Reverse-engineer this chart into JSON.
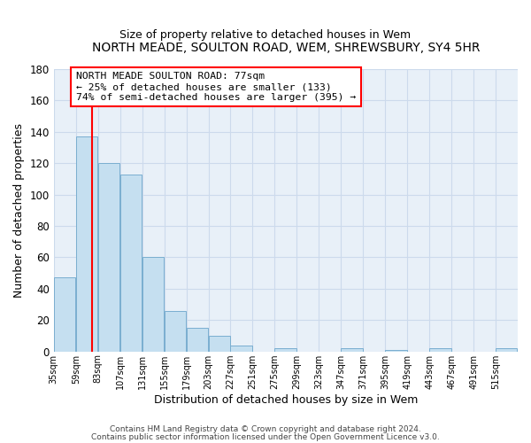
{
  "title": "NORTH MEADE, SOULTON ROAD, WEM, SHREWSBURY, SY4 5HR",
  "subtitle": "Size of property relative to detached houses in Wem",
  "xlabel": "Distribution of detached houses by size in Wem",
  "ylabel": "Number of detached properties",
  "bar_color": "#c5dff0",
  "bar_edge_color": "#7aaed0",
  "grid_color": "#ccdaec",
  "background_color": "#e8f0f8",
  "bin_labels": [
    "35sqm",
    "59sqm",
    "83sqm",
    "107sqm",
    "131sqm",
    "155sqm",
    "179sqm",
    "203sqm",
    "227sqm",
    "251sqm",
    "275sqm",
    "299sqm",
    "323sqm",
    "347sqm",
    "371sqm",
    "395sqm",
    "419sqm",
    "443sqm",
    "467sqm",
    "491sqm",
    "515sqm"
  ],
  "bin_edges": [
    35,
    59,
    83,
    107,
    131,
    155,
    179,
    203,
    227,
    251,
    275,
    299,
    323,
    347,
    371,
    395,
    419,
    443,
    467,
    491,
    515
  ],
  "bar_heights": [
    47,
    137,
    120,
    113,
    60,
    26,
    15,
    10,
    4,
    0,
    2,
    0,
    0,
    2,
    0,
    1,
    0,
    2,
    0,
    0,
    2
  ],
  "ylim": [
    0,
    180
  ],
  "yticks": [
    0,
    20,
    40,
    60,
    80,
    100,
    120,
    140,
    160,
    180
  ],
  "property_line_x": 77,
  "annotation_text_line1": "NORTH MEADE SOULTON ROAD: 77sqm",
  "annotation_text_line2": "← 25% of detached houses are smaller (133)",
  "annotation_text_line3": "74% of semi-detached houses are larger (395) →",
  "footer_line1": "Contains HM Land Registry data © Crown copyright and database right 2024.",
  "footer_line2": "Contains public sector information licensed under the Open Government Licence v3.0."
}
